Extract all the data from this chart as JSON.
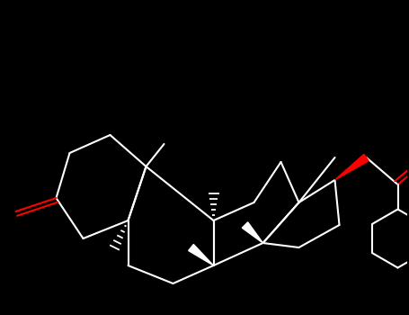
{
  "bg_color": "#000000",
  "bond_color": "#ffffff",
  "oxygen_color": "#ff0000",
  "lw": 1.5,
  "figsize": [
    4.55,
    3.5
  ],
  "dpi": 100,
  "xlim": [
    0.0,
    9.0
  ],
  "ylim": [
    0.5,
    7.5
  ]
}
